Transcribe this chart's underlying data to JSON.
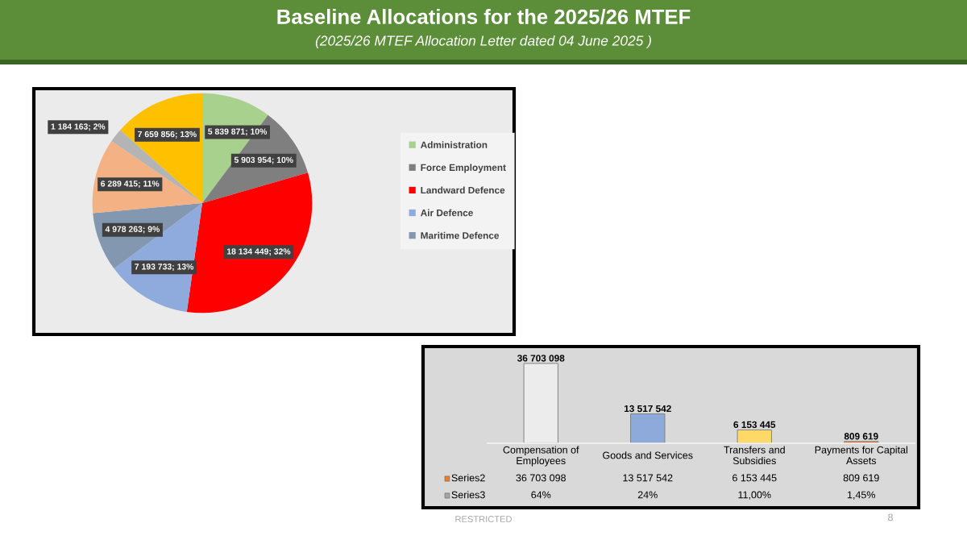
{
  "chart_data": [
    {
      "type": "pie",
      "title": "Baseline Allocations for the 2025/26 MTEF",
      "subtitle": "(2025/26 MTEF Allocation Letter dated 04 June 2025 )",
      "categories": [
        "Administration",
        "Force Employment",
        "Landward Defence",
        "Air Defence",
        "Maritime Defence",
        null,
        null,
        null
      ],
      "values": [
        5839871,
        5903954,
        18134449,
        7193733,
        4978263,
        6289415,
        1184163,
        7659856
      ],
      "value_labels": [
        "5 839 871; 10%",
        "5 903 954; 10%",
        "18 134 449; 32%",
        "7 193 733; 13%",
        "4 978 263; 9%",
        "6 289 415; 11%",
        "1 184 163; 2%",
        "7 659 856; 13%"
      ],
      "colors": [
        "#a9d18e",
        "#7f7f7f",
        "#ff0000",
        "#8faadc",
        "#8497b0",
        "#f4b183",
        "#b4b4b4",
        "#ffc000"
      ],
      "legend": "right"
    },
    {
      "type": "bar",
      "categories": [
        "Compensation of Employees",
        "Goods and Services",
        "Transfers and Subsidies",
        "Payments for Capital Assets"
      ],
      "series": [
        {
          "name": "Series2",
          "color": "#ed7d31",
          "colors": [
            "#ececec",
            "#8eaadb",
            "#ffd966",
            "#ed7d31"
          ],
          "values": [
            36703098,
            13517542,
            6153445,
            809619
          ],
          "value_labels": [
            "36 703 098",
            "13 517 542",
            "6 153 445",
            "809 619"
          ]
        },
        {
          "name": "Series3",
          "color": "#a5a5a5",
          "values": [
            null,
            null,
            null,
            null
          ],
          "value_labels": [
            "64%",
            "24%",
            "11,00%",
            "1,45%"
          ]
        }
      ],
      "tick_labels": "x",
      "legend": "bottom left",
      "annotations": [
        "RESTRICTED",
        "8"
      ]
    }
  ]
}
